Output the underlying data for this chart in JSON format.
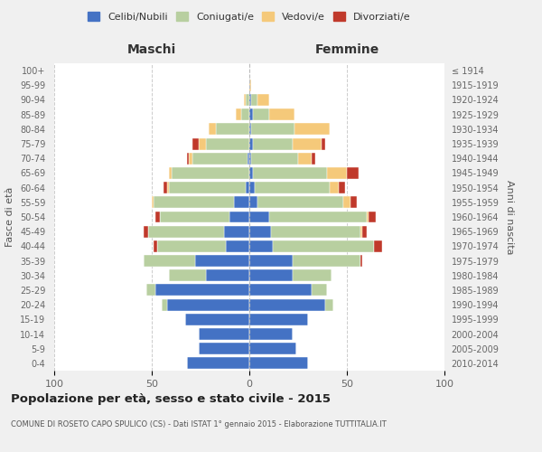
{
  "age_groups": [
    "0-4",
    "5-9",
    "10-14",
    "15-19",
    "20-24",
    "25-29",
    "30-34",
    "35-39",
    "40-44",
    "45-49",
    "50-54",
    "55-59",
    "60-64",
    "65-69",
    "70-74",
    "75-79",
    "80-84",
    "85-89",
    "90-94",
    "95-99",
    "100+"
  ],
  "birth_years": [
    "2010-2014",
    "2005-2009",
    "2000-2004",
    "1995-1999",
    "1990-1994",
    "1985-1989",
    "1980-1984",
    "1975-1979",
    "1970-1974",
    "1965-1969",
    "1960-1964",
    "1955-1959",
    "1950-1954",
    "1945-1949",
    "1940-1944",
    "1935-1939",
    "1930-1934",
    "1925-1929",
    "1920-1924",
    "1915-1919",
    "≤ 1914"
  ],
  "male": {
    "celibi": [
      32,
      26,
      26,
      33,
      42,
      48,
      22,
      28,
      12,
      13,
      10,
      8,
      2,
      0,
      1,
      0,
      0,
      0,
      0,
      0,
      0
    ],
    "coniugati": [
      0,
      0,
      0,
      0,
      3,
      5,
      19,
      26,
      35,
      39,
      36,
      41,
      39,
      40,
      28,
      22,
      17,
      4,
      2,
      0,
      0
    ],
    "vedovi": [
      0,
      0,
      0,
      0,
      0,
      0,
      0,
      0,
      0,
      0,
      0,
      1,
      1,
      1,
      2,
      4,
      4,
      3,
      1,
      0,
      0
    ],
    "divorziati": [
      0,
      0,
      0,
      0,
      0,
      0,
      0,
      0,
      2,
      2,
      2,
      0,
      2,
      0,
      1,
      3,
      0,
      0,
      0,
      0,
      0
    ]
  },
  "female": {
    "nubili": [
      30,
      24,
      22,
      30,
      39,
      32,
      22,
      22,
      12,
      11,
      10,
      4,
      3,
      2,
      1,
      2,
      1,
      2,
      1,
      0,
      0
    ],
    "coniugate": [
      0,
      0,
      0,
      0,
      4,
      8,
      20,
      35,
      52,
      46,
      50,
      44,
      38,
      38,
      24,
      20,
      22,
      8,
      3,
      0,
      0
    ],
    "vedove": [
      0,
      0,
      0,
      0,
      0,
      0,
      0,
      0,
      0,
      1,
      1,
      4,
      5,
      10,
      7,
      15,
      18,
      13,
      6,
      1,
      0
    ],
    "divorziate": [
      0,
      0,
      0,
      0,
      0,
      0,
      0,
      1,
      4,
      2,
      4,
      3,
      3,
      6,
      2,
      2,
      0,
      0,
      0,
      0,
      0
    ]
  },
  "colors": {
    "celibi": "#4472c4",
    "coniugati": "#b8cfa0",
    "vedovi": "#f5c97a",
    "divorziati": "#c0392b"
  },
  "xlim": 100,
  "title": "Popolazione per età, sesso e stato civile - 2015",
  "subtitle": "COMUNE DI ROSETO CAPO SPULICO (CS) - Dati ISTAT 1° gennaio 2015 - Elaborazione TUTTITALIA.IT",
  "ylabel_left": "Fasce di età",
  "ylabel_right": "Anni di nascita",
  "xlabel_left": "Maschi",
  "xlabel_right": "Femmine",
  "legend_labels": [
    "Celibi/Nubili",
    "Coniugati/e",
    "Vedovi/e",
    "Divorziati/e"
  ],
  "bg_color": "#f0f0f0",
  "plot_bg_color": "#ffffff"
}
